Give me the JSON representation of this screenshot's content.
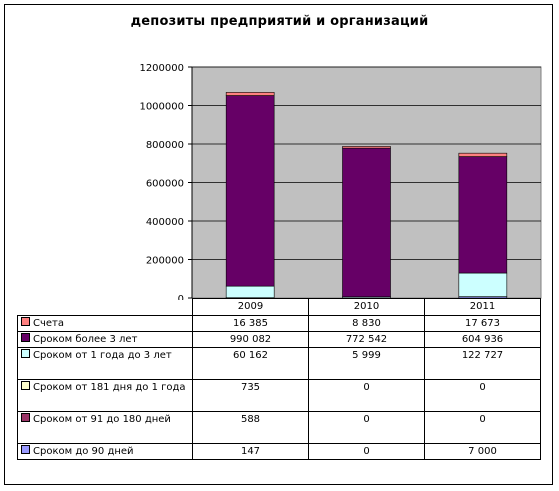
{
  "chart_data": {
    "type": "bar",
    "stacked": true,
    "title": "депозиты предприятий и организаций",
    "categories": [
      "2009",
      "2010",
      "2011"
    ],
    "ylim": [
      0,
      1200000
    ],
    "yticks": [
      "0",
      "200000",
      "400000",
      "600000",
      "800000",
      "1000000",
      "1200000"
    ],
    "grid": true,
    "legend": "table-bottom",
    "series": [
      {
        "name": "Срок до 90 дней",
        "legend_label": "Сроком до 90 дней",
        "values": [
          147,
          0,
          7000
        ],
        "value_labels": [
          "147",
          "0",
          "7 000"
        ],
        "color": "#9999ff"
      },
      {
        "name": "Срок от 91 до 180 дней",
        "legend_label": "Сроком от 91 до 180 дней",
        "values": [
          588,
          0,
          0
        ],
        "value_labels": [
          "588",
          "0",
          "0"
        ],
        "color": "#993366"
      },
      {
        "name": "Срок от 181 дня до 1 года",
        "legend_label": "Сроком от 181 дня до 1 года",
        "values": [
          735,
          0,
          0
        ],
        "value_labels": [
          "735",
          "0",
          "0"
        ],
        "color": "#ffffcc"
      },
      {
        "name": "Срок от 1 года до 3 лет",
        "legend_label": "Сроком от 1 года до 3 лет",
        "values": [
          60162,
          5999,
          122727
        ],
        "value_labels": [
          "60 162",
          "5 999",
          "122 727"
        ],
        "color": "#ccffff"
      },
      {
        "name": "Срок более 3 лет",
        "legend_label": "Сроком более 3 лет",
        "values": [
          990082,
          772542,
          604936
        ],
        "value_labels": [
          "990 082",
          "772 542",
          "604 936"
        ],
        "color": "#660066"
      },
      {
        "name": "Счета",
        "legend_label": "Счета",
        "values": [
          16385,
          8830,
          17673
        ],
        "value_labels": [
          "16 385",
          "8 830",
          "17 673"
        ],
        "color": "#ff8080"
      }
    ],
    "table_order": [
      5,
      4,
      3,
      2,
      1,
      0
    ],
    "plot_background": "#c0c0c0"
  }
}
